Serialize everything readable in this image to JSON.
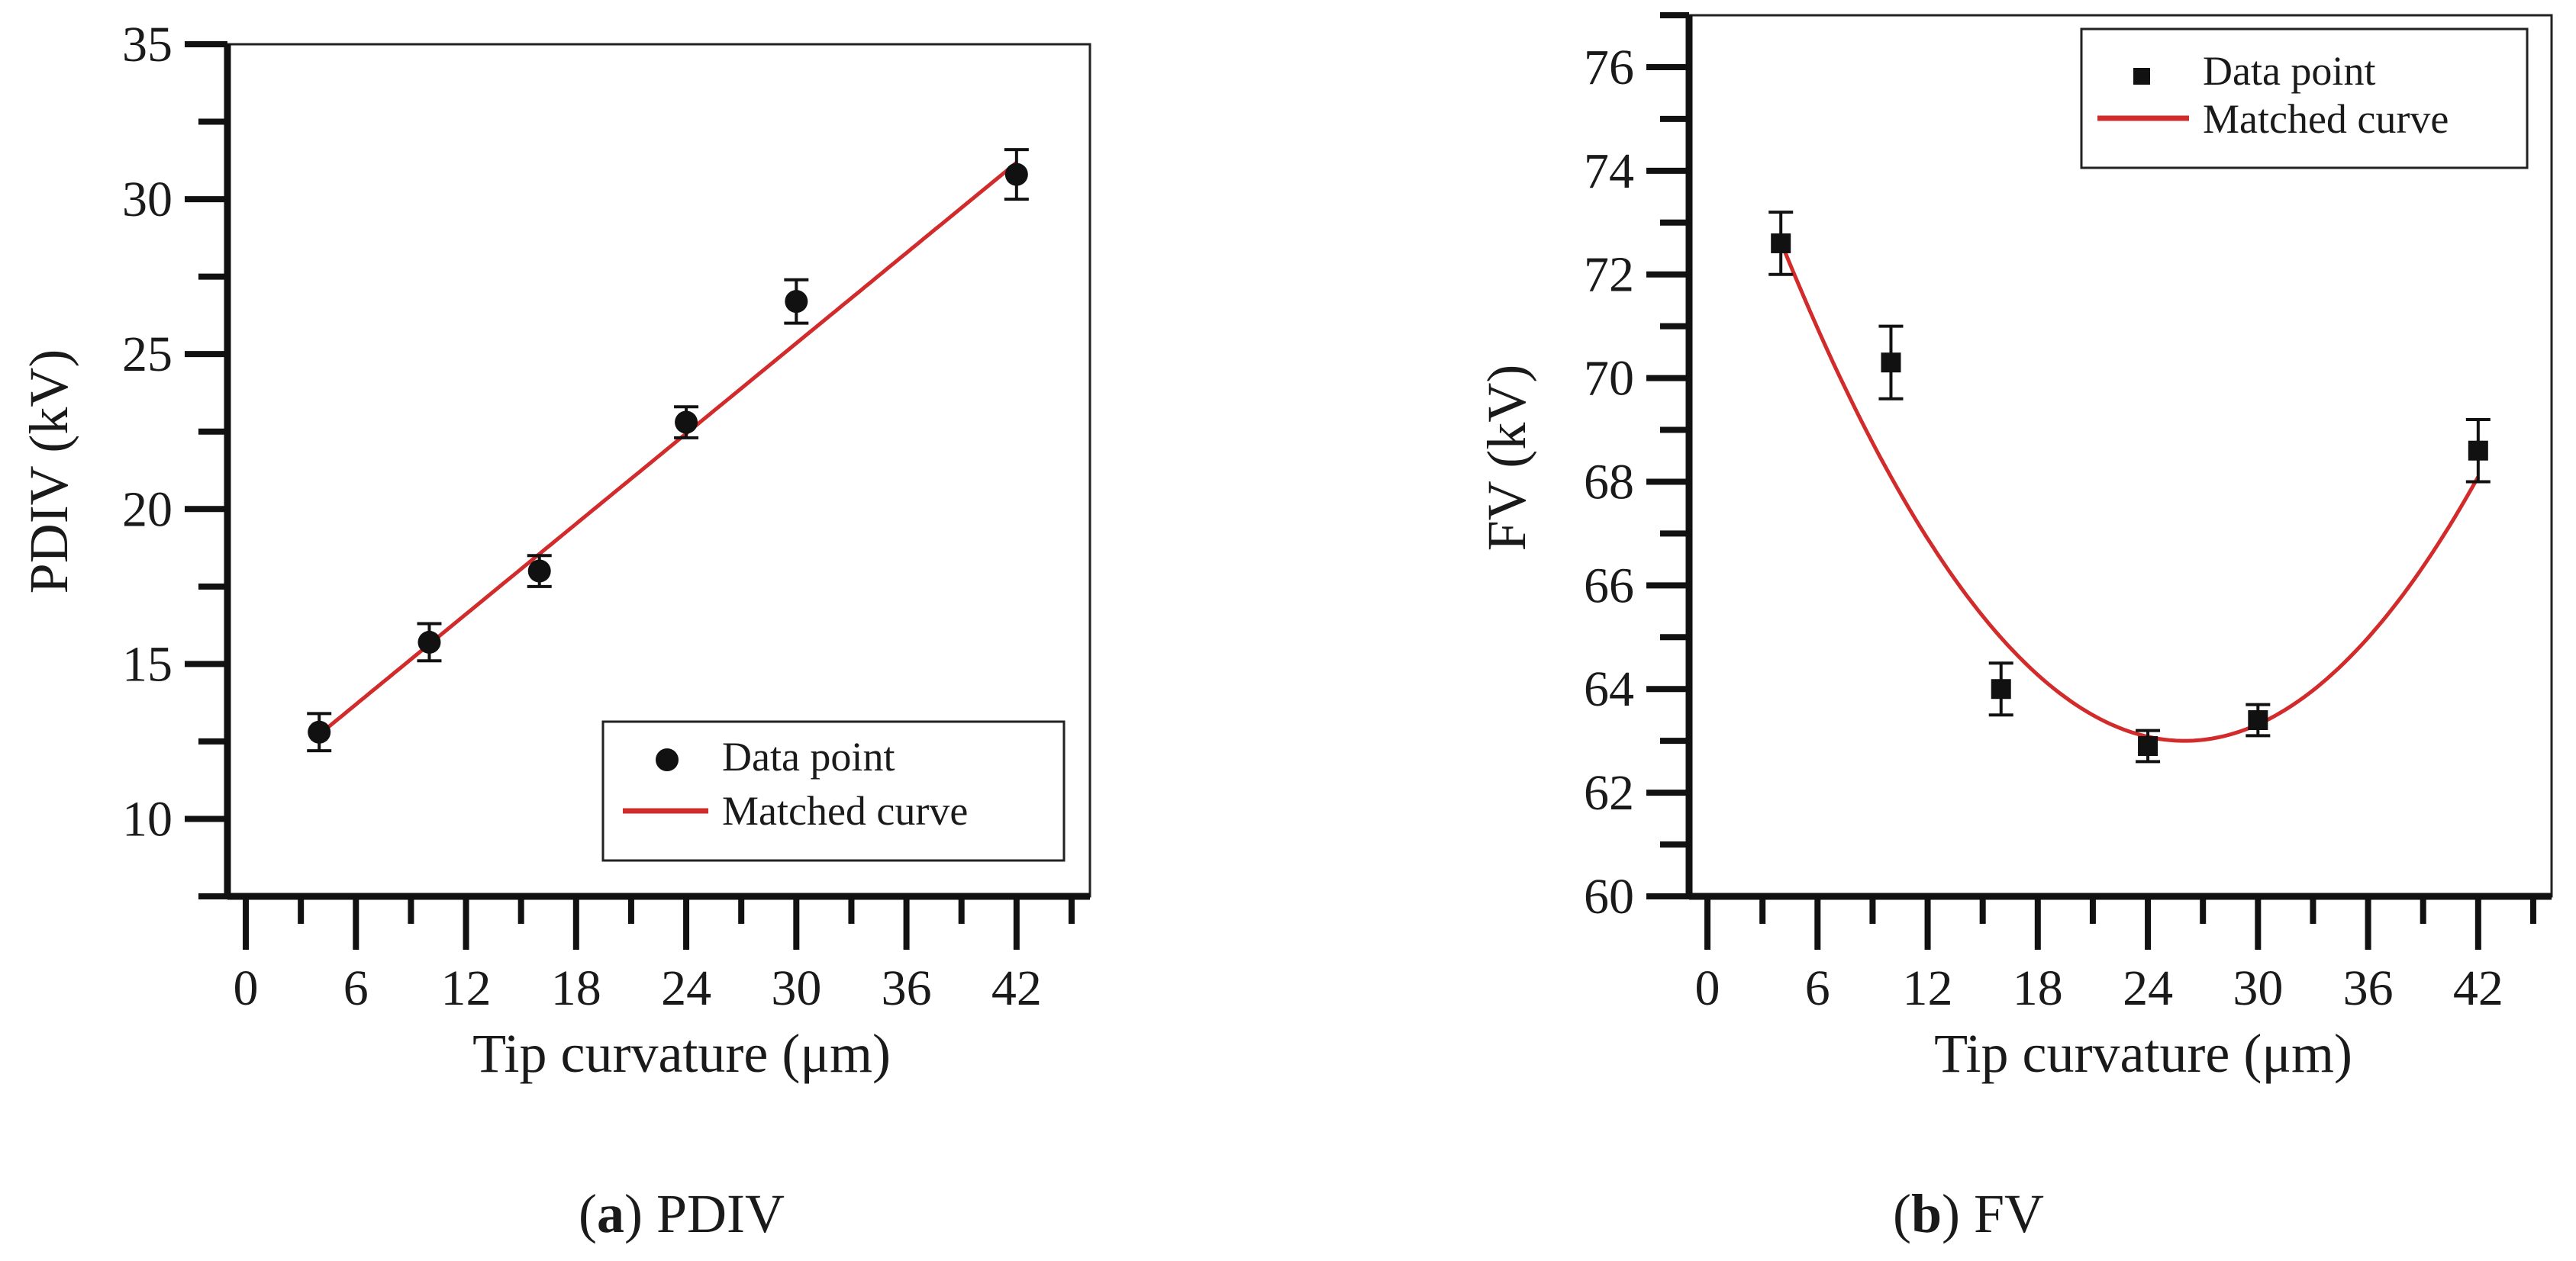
{
  "chart_data": [
    {
      "type": "scatter",
      "panel": "a",
      "caption_label": "a",
      "caption_title": "PDIV",
      "xlabel": "Tip curvature (μm)",
      "ylabel": "PDIV (kV)",
      "xlim": [
        -1,
        46
      ],
      "ylim": [
        7.5,
        35
      ],
      "xticks": [
        0,
        6,
        12,
        18,
        24,
        30,
        36,
        42
      ],
      "yticks": [
        10,
        15,
        20,
        25,
        30,
        35
      ],
      "x_minor_step": 3,
      "y_minor_step": 2.5,
      "series": [
        {
          "name": "Data point",
          "marker": "circle",
          "points": [
            {
              "x": 4,
              "y": 12.8,
              "err": 0.6
            },
            {
              "x": 10,
              "y": 15.7,
              "err": 0.6
            },
            {
              "x": 16,
              "y": 18.0,
              "err": 0.5
            },
            {
              "x": 24,
              "y": 22.8,
              "err": 0.5
            },
            {
              "x": 30,
              "y": 26.7,
              "err": 0.7
            },
            {
              "x": 42,
              "y": 30.8,
              "err": 0.8
            }
          ]
        },
        {
          "name": "Matched curve",
          "color": "#d12b2b",
          "fit": "linear",
          "coeffs": [
            10.78,
            0.4857
          ],
          "xrange": [
            4,
            42
          ]
        }
      ],
      "legend": [
        "Data point",
        "Matched curve"
      ],
      "legend_position": "bottom-right"
    },
    {
      "type": "scatter",
      "panel": "b",
      "caption_label": "b",
      "caption_title": "FV",
      "xlabel": "Tip curvature (μm)",
      "ylabel": "FV (kV)",
      "xlim": [
        -1,
        46
      ],
      "ylim": [
        60,
        77
      ],
      "xticks": [
        0,
        6,
        12,
        18,
        24,
        30,
        36,
        42
      ],
      "yticks": [
        60,
        62,
        64,
        66,
        68,
        70,
        72,
        74,
        76
      ],
      "x_minor_step": 3,
      "y_minor_step": 1,
      "series": [
        {
          "name": "Data point",
          "marker": "square",
          "points": [
            {
              "x": 4,
              "y": 72.6,
              "err": 0.6
            },
            {
              "x": 10,
              "y": 70.3,
              "err": 0.7
            },
            {
              "x": 16,
              "y": 64.0,
              "err": 0.5
            },
            {
              "x": 24,
              "y": 62.9,
              "err": 0.3
            },
            {
              "x": 30,
              "y": 63.4,
              "err": 0.3
            },
            {
              "x": 42,
              "y": 68.6,
              "err": 0.6
            }
          ]
        },
        {
          "name": "Matched curve",
          "color": "#d12b2b",
          "fit": "quadratic",
          "coeffs": [
            63.0,
            26,
            0.0199
          ],
          "xrange": [
            4,
            42
          ]
        }
      ],
      "legend": [
        "Data point",
        "Matched curve"
      ],
      "legend_position": "top-right"
    }
  ]
}
